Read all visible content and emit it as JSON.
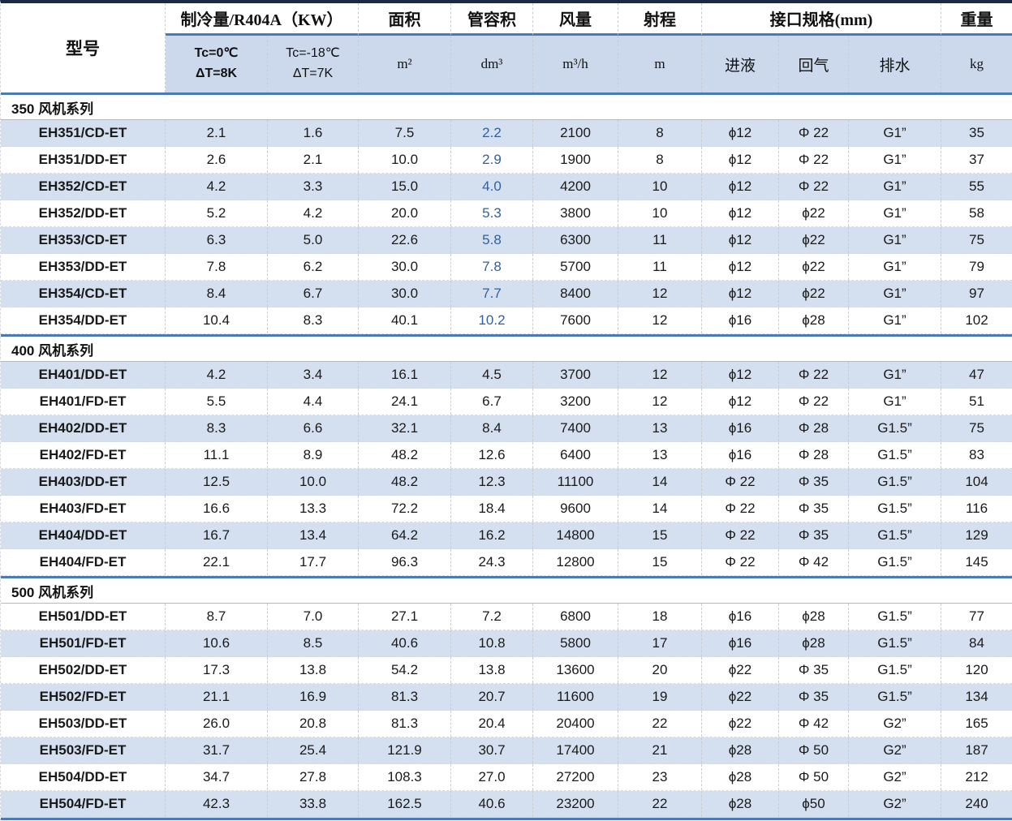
{
  "table": {
    "header": {
      "model_label": "型号",
      "capacity_group_label": "制冷量/R404A（KW）",
      "capacity_sub1_line1": "Tc=0℃",
      "capacity_sub1_line2": "ΔT=8K",
      "capacity_sub2_line1": "Tc=-18℃",
      "capacity_sub2_line2": "ΔT=7K",
      "area_label": "面积",
      "area_unit": "m²",
      "volume_label": "管容积",
      "volume_unit": "dm³",
      "airflow_label": "风量",
      "airflow_unit": "m³/h",
      "throw_label": "射程",
      "throw_unit": "m",
      "interface_group_label": "接口规格(mm)",
      "liquid_label": "进液",
      "gas_label": "回气",
      "drain_label": "排水",
      "weight_label": "重量",
      "weight_unit": "kg"
    },
    "columns": [
      "model",
      "tc0",
      "tc18",
      "area",
      "volume",
      "airflow",
      "throw",
      "liquid",
      "gas",
      "drain",
      "weight"
    ],
    "sections": [
      {
        "title": "350 风机系列",
        "striping": "odd",
        "volume_text_blue": true,
        "rows": [
          [
            "EH351/CD-ET",
            "2.1",
            "1.6",
            "7.5",
            "2.2",
            "2100",
            "8",
            "ϕ12",
            "Φ 22",
            "G1”",
            "35"
          ],
          [
            "EH351/DD-ET",
            "2.6",
            "2.1",
            "10.0",
            "2.9",
            "1900",
            "8",
            "ϕ12",
            "Φ 22",
            "G1”",
            "37"
          ],
          [
            "EH352/CD-ET",
            "4.2",
            "3.3",
            "15.0",
            "4.0",
            "4200",
            "10",
            "ϕ12",
            "Φ 22",
            "G1”",
            "55"
          ],
          [
            "EH352/DD-ET",
            "5.2",
            "4.2",
            "20.0",
            "5.3",
            "3800",
            "10",
            "ϕ12",
            "ϕ22",
            "G1”",
            "58"
          ],
          [
            "EH353/CD-ET",
            "6.3",
            "5.0",
            "22.6",
            "5.8",
            "6300",
            "11",
            "ϕ12",
            "ϕ22",
            "G1”",
            "75"
          ],
          [
            "EH353/DD-ET",
            "7.8",
            "6.2",
            "30.0",
            "7.8",
            "5700",
            "11",
            "ϕ12",
            "ϕ22",
            "G1”",
            "79"
          ],
          [
            "EH354/CD-ET",
            "8.4",
            "6.7",
            "30.0",
            "7.7",
            "8400",
            "12",
            "ϕ12",
            "ϕ22",
            "G1”",
            "97"
          ],
          [
            "EH354/DD-ET",
            "10.4",
            "8.3",
            "40.1",
            "10.2",
            "7600",
            "12",
            "ϕ16",
            "ϕ28",
            "G1”",
            "102"
          ]
        ]
      },
      {
        "title": "400 风机系列",
        "striping": "odd",
        "volume_text_blue": false,
        "rows": [
          [
            "EH401/DD-ET",
            "4.2",
            "3.4",
            "16.1",
            "4.5",
            "3700",
            "12",
            "ϕ12",
            "Φ 22",
            "G1”",
            "47"
          ],
          [
            "EH401/FD-ET",
            "5.5",
            "4.4",
            "24.1",
            "6.7",
            "3200",
            "12",
            "ϕ12",
            "Φ 22",
            "G1”",
            "51"
          ],
          [
            "EH402/DD-ET",
            "8.3",
            "6.6",
            "32.1",
            "8.4",
            "7400",
            "13",
            "ϕ16",
            "Φ 28",
            "G1.5”",
            "75"
          ],
          [
            "EH402/FD-ET",
            "11.1",
            "8.9",
            "48.2",
            "12.6",
            "6400",
            "13",
            "ϕ16",
            "Φ 28",
            "G1.5”",
            "83"
          ],
          [
            "EH403/DD-ET",
            "12.5",
            "10.0",
            "48.2",
            "12.3",
            "11100",
            "14",
            "Φ 22",
            "Φ 35",
            "G1.5”",
            "104"
          ],
          [
            "EH403/FD-ET",
            "16.6",
            "13.3",
            "72.2",
            "18.4",
            "9600",
            "14",
            "Φ 22",
            "Φ 35",
            "G1.5”",
            "116"
          ],
          [
            "EH404/DD-ET",
            "16.7",
            "13.4",
            "64.2",
            "16.2",
            "14800",
            "15",
            "Φ 22",
            "Φ 35",
            "G1.5”",
            "129"
          ],
          [
            "EH404/FD-ET",
            "22.1",
            "17.7",
            "96.3",
            "24.3",
            "12800",
            "15",
            "Φ 22",
            "Φ 42",
            "G1.5”",
            "145"
          ]
        ]
      },
      {
        "title": "500 风机系列",
        "striping": "even",
        "volume_text_blue": false,
        "rows": [
          [
            "EH501/DD-ET",
            "8.7",
            "7.0",
            "27.1",
            "7.2",
            "6800",
            "18",
            "ϕ16",
            "ϕ28",
            "G1.5”",
            "77"
          ],
          [
            "EH501/FD-ET",
            "10.6",
            "8.5",
            "40.6",
            "10.8",
            "5800",
            "17",
            "ϕ16",
            "ϕ28",
            "G1.5”",
            "84"
          ],
          [
            "EH502/DD-ET",
            "17.3",
            "13.8",
            "54.2",
            "13.8",
            "13600",
            "20",
            "ϕ22",
            "Φ 35",
            "G1.5”",
            "120"
          ],
          [
            "EH502/FD-ET",
            "21.1",
            "16.9",
            "81.3",
            "20.7",
            "11600",
            "19",
            "ϕ22",
            "Φ 35",
            "G1.5”",
            "134"
          ],
          [
            "EH503/DD-ET",
            "26.0",
            "20.8",
            "81.3",
            "20.4",
            "20400",
            "22",
            "ϕ22",
            "Φ 42",
            "G2”",
            "165"
          ],
          [
            "EH503/FD-ET",
            "31.7",
            "25.4",
            "121.9",
            "30.7",
            "17400",
            "21",
            "ϕ28",
            "Φ 50",
            "G2”",
            "187"
          ],
          [
            "EH504/DD-ET",
            "34.7",
            "27.8",
            "108.3",
            "27.0",
            "27200",
            "23",
            "ϕ28",
            "Φ 50",
            "G2”",
            "212"
          ],
          [
            "EH504/FD-ET",
            "42.3",
            "33.8",
            "162.5",
            "40.6",
            "23200",
            "22",
            "ϕ28",
            "ϕ50",
            "G2”",
            "240"
          ]
        ]
      }
    ]
  },
  "colors": {
    "shaded_row": "#d4dfef",
    "header_subrow": "#ccd9ec",
    "thick_rule": "#4b7bb5",
    "top_border": "#1b2a44",
    "blue_value_text": "#31609f"
  }
}
